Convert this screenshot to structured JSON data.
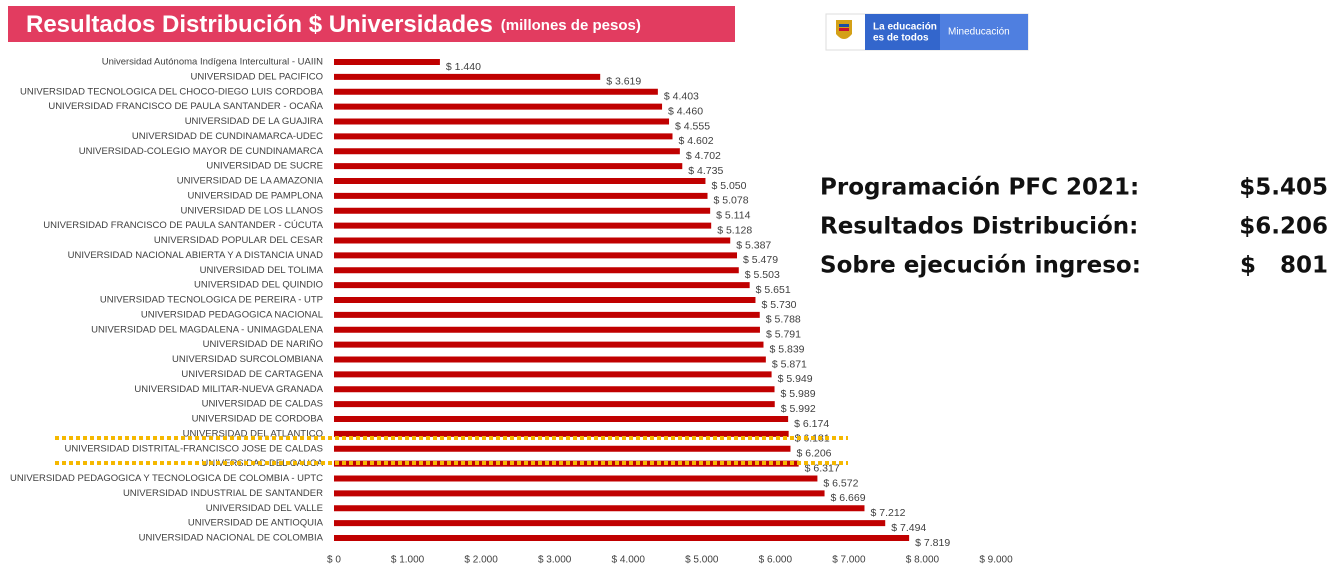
{
  "chart_data": {
    "type": "bar",
    "orientation": "horizontal",
    "title": "Resultados Distribución $ Universidades",
    "subtitle": "(millones de pesos)",
    "categories": [
      "Universidad Autónoma Indígena Intercultural - UAIIN",
      "UNIVERSIDAD DEL PACIFICO",
      "UNIVERSIDAD TECNOLOGICA DEL CHOCO-DIEGO LUIS CORDOBA",
      "UNIVERSIDAD FRANCISCO DE PAULA SANTANDER - OCAÑA",
      "UNIVERSIDAD DE LA GUAJIRA",
      "UNIVERSIDAD DE CUNDINAMARCA-UDEC",
      "UNIVERSIDAD-COLEGIO MAYOR DE CUNDINAMARCA",
      "UNIVERSIDAD DE SUCRE",
      "UNIVERSIDAD DE LA AMAZONIA",
      "UNIVERSIDAD DE PAMPLONA",
      "UNIVERSIDAD DE LOS LLANOS",
      "UNIVERSIDAD FRANCISCO DE PAULA SANTANDER - CÚCUTA",
      "UNIVERSIDAD POPULAR DEL CESAR",
      "UNIVERSIDAD NACIONAL ABIERTA Y A DISTANCIA UNAD",
      "UNIVERSIDAD DEL TOLIMA",
      "UNIVERSIDAD DEL QUINDIO",
      "UNIVERSIDAD TECNOLOGICA DE PEREIRA - UTP",
      "UNIVERSIDAD PEDAGOGICA NACIONAL",
      "UNIVERSIDAD DEL MAGDALENA - UNIMAGDALENA",
      "UNIVERSIDAD DE NARIÑO",
      "UNIVERSIDAD SURCOLOMBIANA",
      "UNIVERSIDAD DE CARTAGENA",
      "UNIVERSIDAD MILITAR-NUEVA GRANADA",
      "UNIVERSIDAD DE CALDAS",
      "UNIVERSIDAD DE CORDOBA",
      "UNIVERSIDAD DEL ATLANTICO",
      "UNIVERSIDAD DISTRITAL-FRANCISCO JOSE DE CALDAS",
      "UNIVERSIDAD DEL CAUCA",
      "UNIVERSIDAD PEDAGOGICA Y TECNOLOGICA DE COLOMBIA - UPTC",
      "UNIVERSIDAD INDUSTRIAL DE SANTANDER",
      "UNIVERSIDAD DEL VALLE",
      "UNIVERSIDAD DE ANTIOQUIA",
      "UNIVERSIDAD NACIONAL DE COLOMBIA"
    ],
    "values": [
      1440,
      3619,
      4403,
      4460,
      4555,
      4602,
      4702,
      4735,
      5050,
      5078,
      5114,
      5128,
      5387,
      5479,
      5503,
      5651,
      5730,
      5788,
      5791,
      5839,
      5871,
      5949,
      5989,
      5992,
      6174,
      6181,
      6206,
      6317,
      6572,
      6669,
      7212,
      7494,
      7819
    ],
    "value_labels": [
      "$ 1.440",
      "$ 3.619",
      "$ 4.403",
      "$ 4.460",
      "$ 4.555",
      "$ 4.602",
      "$ 4.702",
      "$ 4.735",
      "$ 5.050",
      "$ 5.078",
      "$ 5.114",
      "$ 5.128",
      "$ 5.387",
      "$ 5.479",
      "$ 5.503",
      "$ 5.651",
      "$ 5.730",
      "$ 5.788",
      "$ 5.791",
      "$ 5.839",
      "$ 5.871",
      "$ 5.949",
      "$ 5.989",
      "$ 5.992",
      "$ 6.174",
      "$ 6.181",
      "$ 6.206",
      "$ 6.317",
      "$ 6.572",
      "$ 6.669",
      "$ 7.212",
      "$ 7.494",
      "$ 7.819"
    ],
    "color": "#c00000",
    "xlim": [
      0,
      9000
    ],
    "xticks": [
      {
        "value": 0,
        "label": "$ 0"
      },
      {
        "value": 1000,
        "label": "$ 1.000"
      },
      {
        "value": 2000,
        "label": "$ 2.000"
      },
      {
        "value": 3000,
        "label": "$ 3.000"
      },
      {
        "value": 4000,
        "label": "$ 4.000"
      },
      {
        "value": 5000,
        "label": "$ 5.000"
      },
      {
        "value": 6000,
        "label": "$ 6.000"
      },
      {
        "value": 7000,
        "label": "$ 7.000"
      },
      {
        "value": 8000,
        "label": "$ 8.000"
      },
      {
        "value": 9000,
        "label": "$ 9.000"
      }
    ]
  },
  "logo": {
    "line1": "La educación",
    "line2": "es de todos",
    "brand": "Mineducación"
  },
  "summary": [
    {
      "label": "Programación PFC 2021:",
      "value": "$5.405"
    },
    {
      "label": "Resultados Distribución:",
      "value": "$6.206"
    },
    {
      "label": "Sobre ejecución ingreso:",
      "value": "$   801"
    }
  ]
}
